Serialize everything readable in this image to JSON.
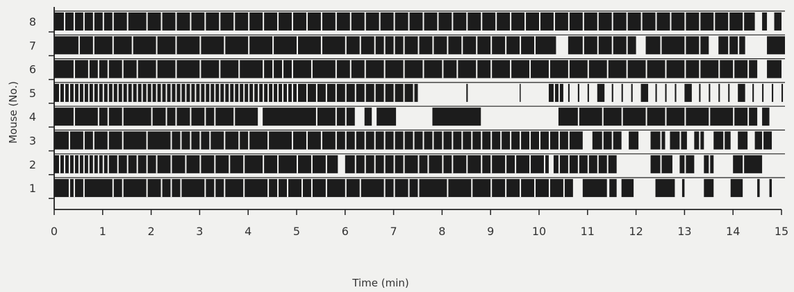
{
  "chart_data": {
    "type": "bar",
    "xlabel": "Time (min)",
    "ylabel": "Mouse (No.)",
    "xlim": [
      0,
      15
    ],
    "x_ticks": [
      "0",
      "1",
      "2",
      "3",
      "4",
      "5",
      "6",
      "7",
      "8",
      "9",
      "10",
      "11",
      "12",
      "13",
      "14",
      "15"
    ],
    "y_ticks": [
      "1",
      "2",
      "3",
      "4",
      "5",
      "6",
      "7",
      "8"
    ],
    "colors": {
      "bar": "#1c1c1c",
      "gap": "#f1f1ef",
      "axis": "#222222",
      "text": "#333333"
    },
    "series": [
      {
        "name": "1",
        "blocks": [
          [
            0.0,
            10.7
          ],
          [
            10.9,
            11.4
          ],
          [
            11.45,
            11.6
          ],
          [
            11.7,
            11.95
          ],
          [
            12.4,
            12.8
          ],
          [
            12.95,
            13.0
          ],
          [
            13.4,
            13.6
          ],
          [
            13.95,
            14.2
          ],
          [
            14.5,
            14.55
          ],
          [
            14.75,
            14.8
          ]
        ],
        "white_ticks": [
          0.3,
          0.4,
          0.6,
          1.2,
          1.4,
          1.9,
          2.2,
          2.4,
          2.6,
          3.1,
          3.3,
          3.5,
          3.9,
          4.4,
          4.6,
          4.8,
          5.1,
          5.3,
          5.6,
          6.0,
          6.3,
          6.8,
          7.0,
          7.3,
          7.5,
          8.1,
          8.6,
          9.0,
          9.3,
          9.6,
          9.9,
          10.2,
          10.5
        ]
      },
      {
        "name": "2",
        "blocks": [
          [
            0.0,
            5.85
          ],
          [
            6.0,
            10.2
          ],
          [
            10.3,
            11.6
          ],
          [
            12.3,
            12.75
          ],
          [
            12.9,
            13.2
          ],
          [
            13.4,
            13.6
          ],
          [
            14.0,
            14.6
          ]
        ],
        "white_ticks": [
          0.1,
          0.2,
          0.3,
          0.4,
          0.5,
          0.6,
          0.7,
          0.8,
          0.9,
          1.0,
          1.1,
          1.3,
          1.5,
          1.7,
          1.9,
          2.1,
          2.4,
          2.7,
          3.0,
          3.3,
          3.6,
          3.9,
          4.3,
          4.6,
          5.0,
          5.3,
          5.6,
          6.2,
          6.4,
          6.6,
          6.8,
          7.0,
          7.2,
          7.5,
          7.7,
          8.0,
          8.2,
          8.5,
          8.8,
          9.0,
          9.3,
          9.5,
          9.8,
          10.1,
          10.4,
          10.6,
          10.8,
          11.0,
          11.2,
          11.4,
          12.5,
          13.0,
          13.5,
          14.2
        ]
      },
      {
        "name": "3",
        "blocks": [
          [
            0.0,
            10.9
          ],
          [
            11.1,
            11.7
          ],
          [
            11.85,
            12.05
          ],
          [
            12.3,
            12.6
          ],
          [
            12.7,
            13.05
          ],
          [
            13.2,
            13.4
          ],
          [
            13.6,
            13.95
          ],
          [
            14.1,
            14.3
          ],
          [
            14.45,
            14.8
          ]
        ],
        "white_ticks": [
          0.3,
          0.6,
          0.8,
          1.1,
          1.4,
          1.9,
          2.4,
          2.6,
          2.8,
          3.0,
          3.2,
          3.5,
          3.8,
          4.0,
          4.4,
          4.9,
          5.2,
          5.5,
          5.8,
          6.0,
          6.2,
          6.4,
          6.6,
          6.8,
          7.0,
          7.2,
          7.4,
          7.6,
          7.8,
          8.0,
          8.2,
          8.4,
          8.6,
          8.8,
          9.0,
          9.2,
          9.4,
          9.6,
          9.8,
          10.0,
          10.2,
          10.4,
          10.6,
          11.3,
          11.5,
          12.5,
          12.9,
          13.3,
          13.8,
          14.6
        ]
      },
      {
        "name": "4",
        "blocks": [
          [
            0.0,
            4.2
          ],
          [
            4.3,
            6.2
          ],
          [
            6.4,
            6.55
          ],
          [
            6.65,
            7.05
          ],
          [
            7.8,
            8.8
          ],
          [
            10.4,
            14.5
          ],
          [
            14.6,
            14.75
          ],
          [
            15.1,
            15.15
          ],
          [
            15.6,
            15.7
          ]
        ],
        "white_ticks": [
          0.4,
          0.9,
          1.1,
          1.4,
          2.0,
          2.3,
          2.5,
          2.8,
          3.1,
          3.3,
          3.7,
          5.4,
          5.8,
          6.0,
          10.8,
          11.3,
          11.7,
          12.2,
          12.6,
          13.0,
          13.5,
          14.0,
          14.3
        ]
      },
      {
        "name": "5",
        "blocks": [
          [
            0.0,
            7.5
          ],
          [
            8.5,
            8.53
          ],
          [
            9.6,
            9.62
          ],
          [
            10.2,
            10.5
          ],
          [
            10.6,
            10.63
          ],
          [
            10.8,
            10.83
          ],
          [
            11.0,
            11.03
          ],
          [
            11.2,
            11.35
          ],
          [
            11.5,
            11.53
          ],
          [
            11.7,
            11.73
          ],
          [
            11.9,
            11.93
          ],
          [
            12.1,
            12.25
          ],
          [
            12.4,
            12.43
          ],
          [
            12.6,
            12.63
          ],
          [
            12.8,
            12.83
          ],
          [
            13.0,
            13.15
          ],
          [
            13.3,
            13.33
          ],
          [
            13.5,
            13.53
          ],
          [
            13.7,
            13.73
          ],
          [
            13.9,
            13.93
          ],
          [
            14.1,
            14.25
          ],
          [
            14.4,
            14.43
          ],
          [
            14.6,
            14.63
          ],
          [
            14.8,
            14.83
          ],
          [
            15.0,
            15.03
          ],
          [
            15.5,
            15.53
          ]
        ],
        "white_ticks": [
          0.1,
          0.2,
          0.3,
          0.4,
          0.5,
          0.6,
          0.7,
          0.8,
          0.9,
          1.0,
          1.1,
          1.2,
          1.3,
          1.4,
          1.5,
          1.6,
          1.7,
          1.8,
          1.9,
          2.0,
          2.1,
          2.2,
          2.3,
          2.4,
          2.5,
          2.6,
          2.7,
          2.8,
          2.9,
          3.0,
          3.1,
          3.2,
          3.3,
          3.4,
          3.5,
          3.6,
          3.7,
          3.8,
          3.9,
          4.0,
          4.1,
          4.2,
          4.3,
          4.4,
          4.5,
          4.6,
          4.7,
          4.8,
          4.9,
          5.0,
          5.2,
          5.4,
          5.6,
          5.8,
          6.0,
          6.2,
          6.4,
          6.6,
          6.8,
          7.0,
          7.2,
          7.4,
          10.3,
          10.4
        ]
      },
      {
        "name": "6",
        "blocks": [
          [
            0.0,
            14.5
          ],
          [
            14.7,
            15.0
          ],
          [
            15.15,
            15.4
          ],
          [
            15.5,
            15.6
          ]
        ],
        "white_ticks": [
          0.4,
          0.7,
          0.9,
          1.1,
          1.4,
          1.7,
          2.1,
          2.5,
          3.0,
          3.4,
          3.8,
          4.3,
          4.5,
          4.7,
          4.9,
          5.3,
          5.8,
          6.1,
          6.4,
          6.8,
          7.2,
          7.6,
          8.0,
          8.3,
          8.7,
          9.0,
          9.4,
          9.8,
          10.2,
          10.6,
          11.0,
          11.4,
          11.8,
          12.2,
          12.6,
          13.0,
          13.3,
          13.7,
          14.0,
          14.3
        ]
      },
      {
        "name": "7",
        "blocks": [
          [
            0.0,
            10.35
          ],
          [
            10.6,
            12.0
          ],
          [
            12.2,
            13.5
          ],
          [
            13.7,
            14.25
          ],
          [
            14.7,
            15.1
          ]
        ],
        "white_ticks": [
          0.5,
          0.8,
          1.2,
          1.6,
          2.1,
          2.5,
          3.0,
          3.5,
          4.0,
          4.5,
          5.0,
          5.5,
          6.0,
          6.3,
          6.6,
          6.8,
          7.0,
          7.2,
          7.5,
          7.8,
          8.1,
          8.4,
          8.7,
          9.0,
          9.3,
          9.6,
          9.9,
          10.9,
          11.2,
          11.5,
          11.8,
          12.5,
          13.0,
          13.3,
          13.9,
          14.1
        ]
      },
      {
        "name": "8",
        "blocks": [
          [
            0.0,
            14.45
          ],
          [
            14.6,
            14.7
          ],
          [
            14.85,
            15.0
          ],
          [
            15.5,
            15.55
          ]
        ],
        "white_ticks": [
          0.2,
          0.4,
          0.6,
          0.8,
          1.0,
          1.2,
          1.5,
          1.9,
          2.2,
          2.5,
          2.8,
          3.1,
          3.4,
          3.7,
          4.0,
          4.3,
          4.6,
          4.9,
          5.2,
          5.5,
          5.8,
          6.1,
          6.4,
          6.7,
          7.0,
          7.3,
          7.6,
          7.9,
          8.2,
          8.5,
          8.8,
          9.1,
          9.4,
          9.7,
          10.0,
          10.3,
          10.6,
          10.9,
          11.2,
          11.5,
          11.8,
          12.1,
          12.4,
          12.7,
          13.0,
          13.3,
          13.6,
          13.9,
          14.2
        ]
      }
    ]
  }
}
